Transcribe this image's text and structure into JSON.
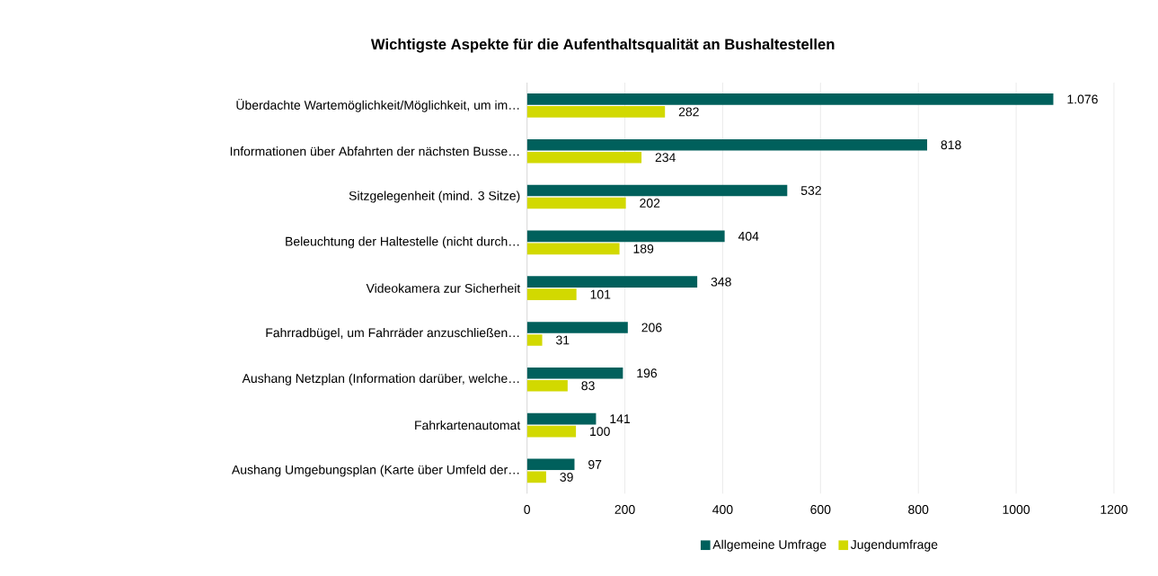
{
  "chart_data": {
    "type": "bar",
    "orientation": "horizontal",
    "title": "Wichtigste Aspekte für die Aufenthaltsqualität an Bushaltestellen",
    "categories": [
      "Überdachte Wartemöglichkeit/Möglichkeit, um im…",
      "Informationen über Abfahrten der nächsten Busse…",
      "Sitzgelegenheit (mind. 3 Sitze)",
      "Beleuchtung der Haltestelle (nicht durch…",
      "Videokamera zur Sicherheit",
      "Fahrradbügel, um Fahrräder anzuschließen…",
      "Aushang Netzplan (Information darüber, welche…",
      "Fahrkartenautomat",
      "Aushang Umgebungsplan (Karte über Umfeld der…"
    ],
    "series": [
      {
        "name": "Allgemeine Umfrage",
        "color": "#00605c",
        "values": [
          1076,
          818,
          532,
          404,
          348,
          206,
          196,
          141,
          97
        ],
        "value_labels": [
          "1.076",
          "818",
          "532",
          "404",
          "348",
          "206",
          "196",
          "141",
          "97"
        ]
      },
      {
        "name": "Jugendumfrage",
        "color": "#d2d900",
        "values": [
          282,
          234,
          202,
          189,
          101,
          31,
          83,
          100,
          39
        ],
        "value_labels": [
          "282",
          "234",
          "202",
          "189",
          "101",
          "31",
          "83",
          "100",
          "39"
        ]
      }
    ],
    "xlim": [
      0,
      1200
    ],
    "xticks": [
      0,
      200,
      400,
      600,
      800,
      1000,
      1200
    ],
    "grid": "x",
    "legend": "bottom"
  }
}
